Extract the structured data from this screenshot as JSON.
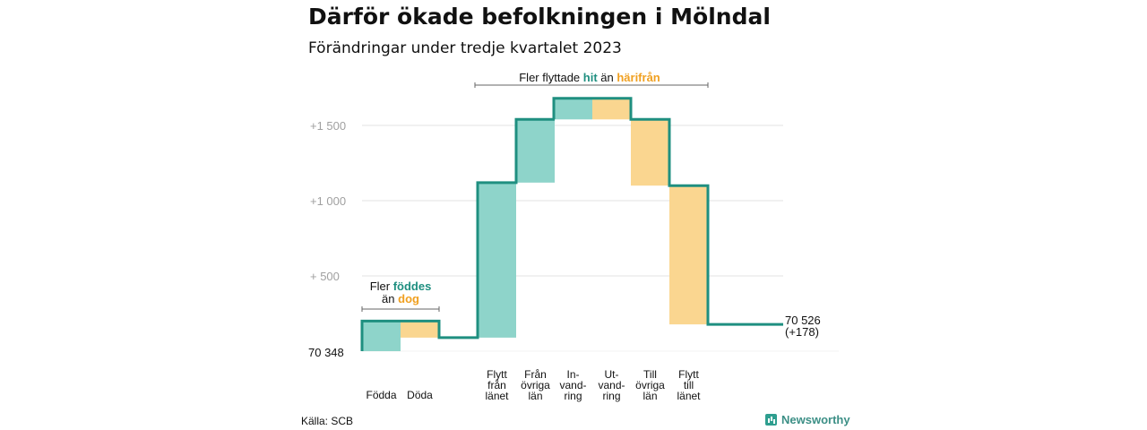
{
  "title": "Därför ökade befolkningen i Mölndal",
  "subtitle": "Förändringar under tredje kvartalet 2023",
  "source": "Källa: SCB",
  "brand": "Newsworthy",
  "colors": {
    "increase": "#8ed4ca",
    "decrease": "#fad690",
    "line": "#1f8f80",
    "grid": "#e3e3e3",
    "axis_text": "#a0a0a0"
  },
  "annotations": {
    "births": {
      "line1": "Fler",
      "hl1": "föddes",
      "line2": "än",
      "hl2": "dog"
    },
    "migration": {
      "pre": "Fler flyttade",
      "hl1": "hit",
      "mid": "än",
      "hl2": "härifrån"
    }
  },
  "chart_data": {
    "type": "waterfall",
    "title": "Därför ökade befolkningen i Mölndal",
    "subtitle": "Förändringar under tredje kvartalet 2023",
    "start": {
      "value": 70348,
      "label": "70  348"
    },
    "end": {
      "value": 70526,
      "label": "70 526",
      "change_label": "(+178)"
    },
    "y_ticks": [
      {
        "offset": 500,
        "label": "+  500"
      },
      {
        "offset": 1000,
        "label": "+1  000"
      },
      {
        "offset": 1500,
        "label": "+1  500"
      }
    ],
    "ylim_offset": [
      0,
      1700
    ],
    "grid": true,
    "categories": [
      {
        "label": [
          "Födda"
        ],
        "delta": 200,
        "kind": "increase"
      },
      {
        "label": [
          "Döda"
        ],
        "delta": -110,
        "kind": "decrease"
      },
      {
        "label": [
          "Flytt",
          "från",
          "länet"
        ],
        "delta": 1030,
        "kind": "increase"
      },
      {
        "label": [
          "Från",
          "övriga",
          "län"
        ],
        "delta": 420,
        "kind": "increase"
      },
      {
        "label": [
          "In-",
          "vand-",
          "ring"
        ],
        "delta": 140,
        "kind": "increase"
      },
      {
        "label": [
          "Ut-",
          "vand-",
          "ring"
        ],
        "delta": -140,
        "kind": "decrease"
      },
      {
        "label": [
          "Till",
          "övriga",
          "län"
        ],
        "delta": -440,
        "kind": "decrease"
      },
      {
        "label": [
          "Flytt",
          "till",
          "länet"
        ],
        "delta": -922,
        "kind": "decrease"
      }
    ]
  }
}
